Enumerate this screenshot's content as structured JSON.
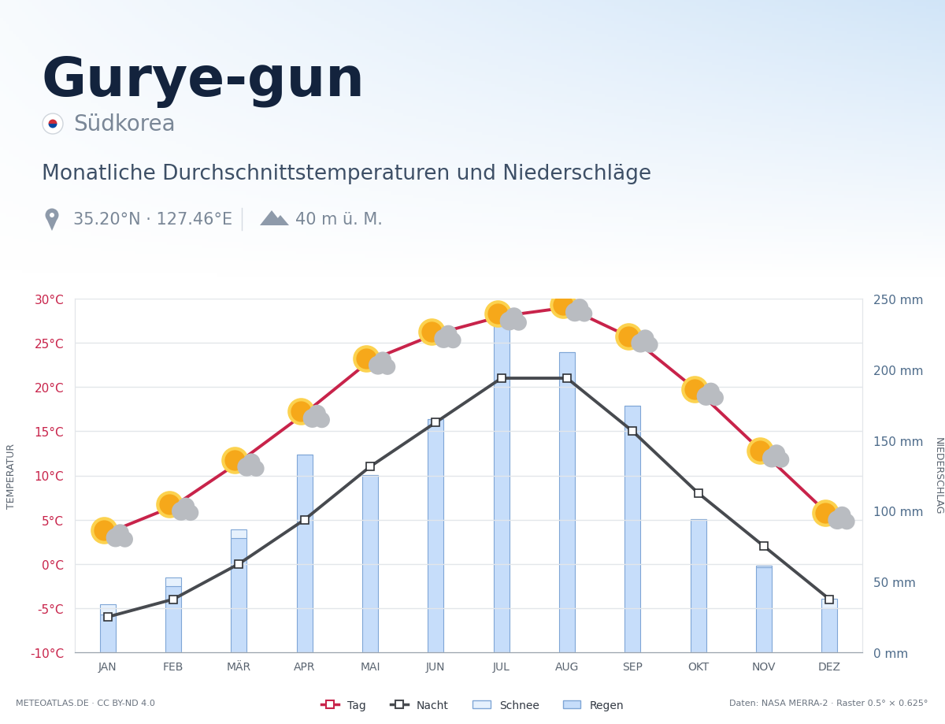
{
  "chart_data": {
    "type": "combo",
    "title": "Gurye-gun",
    "country": "Südkorea",
    "subtitle": "Monatliche Durchschnittstemperaturen und Niederschläge",
    "coordinates": "35.20°N · 127.46°E",
    "elevation": "40 m ü. M.",
    "credit": "METEOATLAS.DE · CC BY-ND 4.0",
    "source": "Daten: NASA MERRA-2 · Raster 0.5° × 0.625°",
    "y_label": "TEMPERATUR",
    "y2_label": "NIEDERSCHLAG",
    "categories": [
      "JAN",
      "FEB",
      "MÄR",
      "APR",
      "MAI",
      "JUN",
      "JUL",
      "AUG",
      "SEP",
      "OKT",
      "NOV",
      "DEZ"
    ],
    "ylim": [
      -10,
      30
    ],
    "yticks": [
      {
        "value": -10,
        "label": "-10°C"
      },
      {
        "value": -5,
        "label": "-5°C"
      },
      {
        "value": 0,
        "label": "0°C"
      },
      {
        "value": 5,
        "label": "5°C"
      },
      {
        "value": 10,
        "label": "10°C"
      },
      {
        "value": 15,
        "label": "15°C"
      },
      {
        "value": 20,
        "label": "20°C"
      },
      {
        "value": 25,
        "label": "25°C"
      },
      {
        "value": 30,
        "label": "30°C"
      }
    ],
    "y2lim": [
      0,
      250
    ],
    "y2ticks": [
      {
        "value": 0,
        "label": "0 mm"
      },
      {
        "value": 50,
        "label": "50 mm"
      },
      {
        "value": 100,
        "label": "100 mm"
      },
      {
        "value": 150,
        "label": "150 mm"
      },
      {
        "value": 200,
        "label": "200 mm"
      },
      {
        "value": 250,
        "label": "250 mm"
      }
    ],
    "grid": true,
    "legend": "lower center",
    "stacked": true,
    "series": [
      {
        "name": "Tag",
        "type": "line",
        "color": "#c8234a",
        "marker": "square",
        "line_style": "solid",
        "values": [
          3.5,
          6.5,
          11.5,
          17,
          23,
          26,
          28,
          29,
          25.5,
          19.5,
          12.5,
          5.5
        ]
      },
      {
        "name": "Nacht",
        "type": "line",
        "color": "#474a4f",
        "marker": "square",
        "line_style": "solid",
        "values": [
          -6,
          -4,
          0,
          5,
          11,
          16,
          21,
          21,
          15,
          8,
          2,
          -4
        ]
      },
      {
        "name": "Schnee",
        "type": "bar",
        "axis": "y2",
        "color": "#e6f1fd",
        "values": [
          7,
          6,
          6,
          0,
          0,
          0,
          0,
          0,
          0,
          0,
          1,
          7
        ]
      },
      {
        "name": "Regen",
        "type": "bar",
        "axis": "y2",
        "color": "#c6ddfa",
        "values": [
          27,
          47,
          81,
          140,
          125,
          165,
          236,
          212,
          174,
          94,
          60,
          31
        ]
      }
    ]
  }
}
